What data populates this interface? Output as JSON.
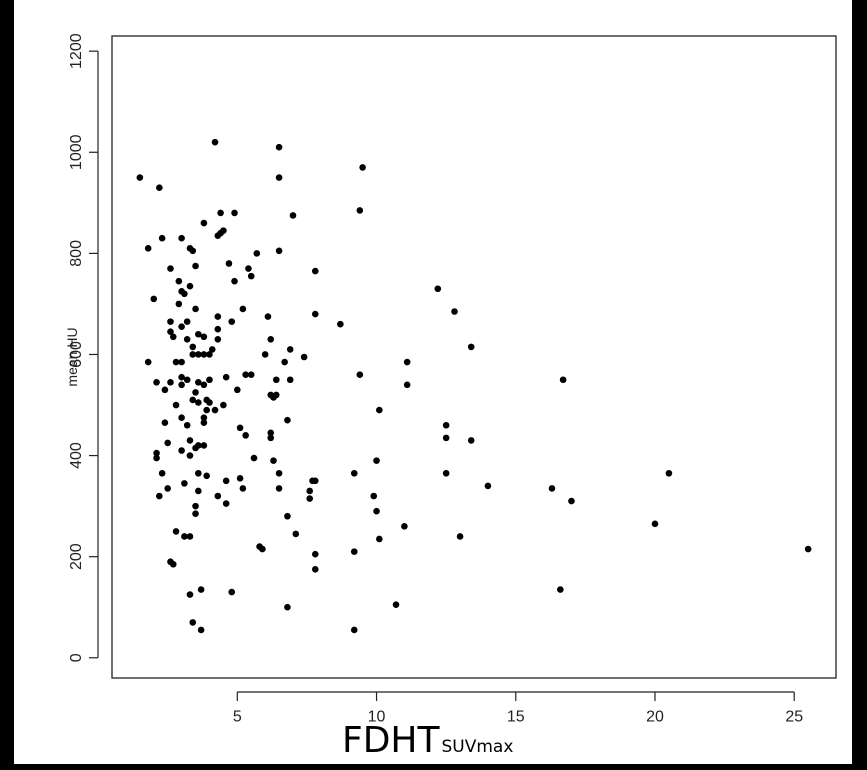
{
  "chart_data": {
    "type": "scatter",
    "xlabel_main": "FDHT",
    "xlabel_sub": "SUVmax",
    "ylabel": "mean HU",
    "xlim": [
      0.5,
      26.5
    ],
    "ylim": [
      -40,
      1230
    ],
    "xticks": [
      5,
      10,
      15,
      20,
      25
    ],
    "yticks": [
      0,
      200,
      400,
      600,
      800,
      1000,
      1200
    ],
    "point_color": "#000000",
    "points": [
      [
        1.5,
        950
      ],
      [
        1.8,
        810
      ],
      [
        1.8,
        585
      ],
      [
        2.0,
        710
      ],
      [
        2.1,
        545
      ],
      [
        2.1,
        405
      ],
      [
        2.1,
        395
      ],
      [
        2.2,
        930
      ],
      [
        2.2,
        320
      ],
      [
        2.3,
        830
      ],
      [
        2.3,
        365
      ],
      [
        2.4,
        530
      ],
      [
        2.4,
        465
      ],
      [
        2.5,
        335
      ],
      [
        2.5,
        425
      ],
      [
        2.6,
        770
      ],
      [
        2.6,
        665
      ],
      [
        2.6,
        645
      ],
      [
        2.6,
        545
      ],
      [
        2.6,
        190
      ],
      [
        2.7,
        185
      ],
      [
        2.7,
        635
      ],
      [
        2.8,
        500
      ],
      [
        2.8,
        585
      ],
      [
        2.8,
        250
      ],
      [
        2.9,
        745
      ],
      [
        2.9,
        700
      ],
      [
        3.0,
        830
      ],
      [
        3.0,
        725
      ],
      [
        3.0,
        655
      ],
      [
        3.0,
        585
      ],
      [
        3.0,
        555
      ],
      [
        3.0,
        540
      ],
      [
        3.0,
        475
      ],
      [
        3.0,
        410
      ],
      [
        3.1,
        720
      ],
      [
        3.1,
        345
      ],
      [
        3.1,
        240
      ],
      [
        3.2,
        665
      ],
      [
        3.2,
        630
      ],
      [
        3.2,
        550
      ],
      [
        3.2,
        460
      ],
      [
        3.3,
        810
      ],
      [
        3.3,
        735
      ],
      [
        3.3,
        430
      ],
      [
        3.3,
        400
      ],
      [
        3.3,
        240
      ],
      [
        3.3,
        125
      ],
      [
        3.4,
        805
      ],
      [
        3.4,
        615
      ],
      [
        3.4,
        600
      ],
      [
        3.4,
        510
      ],
      [
        3.4,
        70
      ],
      [
        3.5,
        775
      ],
      [
        3.5,
        690
      ],
      [
        3.5,
        525
      ],
      [
        3.5,
        415
      ],
      [
        3.5,
        300
      ],
      [
        3.5,
        285
      ],
      [
        3.6,
        640
      ],
      [
        3.6,
        600
      ],
      [
        3.6,
        545
      ],
      [
        3.6,
        505
      ],
      [
        3.6,
        420
      ],
      [
        3.6,
        365
      ],
      [
        3.6,
        330
      ],
      [
        3.7,
        135
      ],
      [
        3.7,
        55
      ],
      [
        3.8,
        860
      ],
      [
        3.8,
        635
      ],
      [
        3.8,
        600
      ],
      [
        3.8,
        540
      ],
      [
        3.8,
        475
      ],
      [
        3.8,
        465
      ],
      [
        3.8,
        420
      ],
      [
        3.9,
        510
      ],
      [
        3.9,
        490
      ],
      [
        3.9,
        360
      ],
      [
        4.0,
        600
      ],
      [
        4.0,
        550
      ],
      [
        4.0,
        505
      ],
      [
        4.1,
        610
      ],
      [
        4.2,
        1020
      ],
      [
        4.2,
        490
      ],
      [
        4.3,
        835
      ],
      [
        4.3,
        675
      ],
      [
        4.3,
        650
      ],
      [
        4.3,
        630
      ],
      [
        4.3,
        320
      ],
      [
        4.4,
        880
      ],
      [
        4.4,
        840
      ],
      [
        4.5,
        845
      ],
      [
        4.5,
        500
      ],
      [
        4.6,
        555
      ],
      [
        4.6,
        350
      ],
      [
        4.6,
        305
      ],
      [
        4.7,
        780
      ],
      [
        4.8,
        665
      ],
      [
        4.8,
        130
      ],
      [
        4.9,
        880
      ],
      [
        4.9,
        745
      ],
      [
        5.0,
        530
      ],
      [
        5.1,
        455
      ],
      [
        5.1,
        355
      ],
      [
        5.2,
        690
      ],
      [
        5.2,
        335
      ],
      [
        5.3,
        560
      ],
      [
        5.3,
        440
      ],
      [
        5.4,
        770
      ],
      [
        5.5,
        755
      ],
      [
        5.5,
        560
      ],
      [
        5.6,
        395
      ],
      [
        5.7,
        800
      ],
      [
        5.8,
        220
      ],
      [
        5.9,
        215
      ],
      [
        6.0,
        600
      ],
      [
        6.1,
        675
      ],
      [
        6.2,
        520
      ],
      [
        6.2,
        435
      ],
      [
        6.2,
        445
      ],
      [
        6.2,
        630
      ],
      [
        6.3,
        515
      ],
      [
        6.3,
        390
      ],
      [
        6.4,
        550
      ],
      [
        6.4,
        520
      ],
      [
        6.5,
        1010
      ],
      [
        6.5,
        950
      ],
      [
        6.5,
        805
      ],
      [
        6.5,
        365
      ],
      [
        6.5,
        335
      ],
      [
        6.7,
        585
      ],
      [
        6.8,
        470
      ],
      [
        6.8,
        280
      ],
      [
        6.8,
        100
      ],
      [
        6.9,
        550
      ],
      [
        6.9,
        610
      ],
      [
        7.0,
        875
      ],
      [
        7.1,
        245
      ],
      [
        7.4,
        595
      ],
      [
        7.6,
        330
      ],
      [
        7.6,
        315
      ],
      [
        7.7,
        350
      ],
      [
        7.8,
        765
      ],
      [
        7.8,
        680
      ],
      [
        7.8,
        350
      ],
      [
        7.8,
        205
      ],
      [
        7.8,
        175
      ],
      [
        8.7,
        660
      ],
      [
        9.2,
        365
      ],
      [
        9.2,
        210
      ],
      [
        9.2,
        55
      ],
      [
        9.4,
        885
      ],
      [
        9.4,
        560
      ],
      [
        9.5,
        970
      ],
      [
        9.9,
        320
      ],
      [
        10.0,
        390
      ],
      [
        10.0,
        290
      ],
      [
        10.1,
        235
      ],
      [
        10.1,
        490
      ],
      [
        10.7,
        105
      ],
      [
        11.0,
        260
      ],
      [
        11.1,
        585
      ],
      [
        11.1,
        540
      ],
      [
        12.2,
        730
      ],
      [
        12.5,
        460
      ],
      [
        12.5,
        435
      ],
      [
        12.5,
        365
      ],
      [
        12.8,
        685
      ],
      [
        13.0,
        240
      ],
      [
        13.4,
        615
      ],
      [
        13.4,
        430
      ],
      [
        14.0,
        340
      ],
      [
        16.3,
        335
      ],
      [
        16.6,
        135
      ],
      [
        16.7,
        550
      ],
      [
        17.0,
        310
      ],
      [
        20.0,
        265
      ],
      [
        20.5,
        365
      ],
      [
        25.5,
        215
      ]
    ]
  }
}
